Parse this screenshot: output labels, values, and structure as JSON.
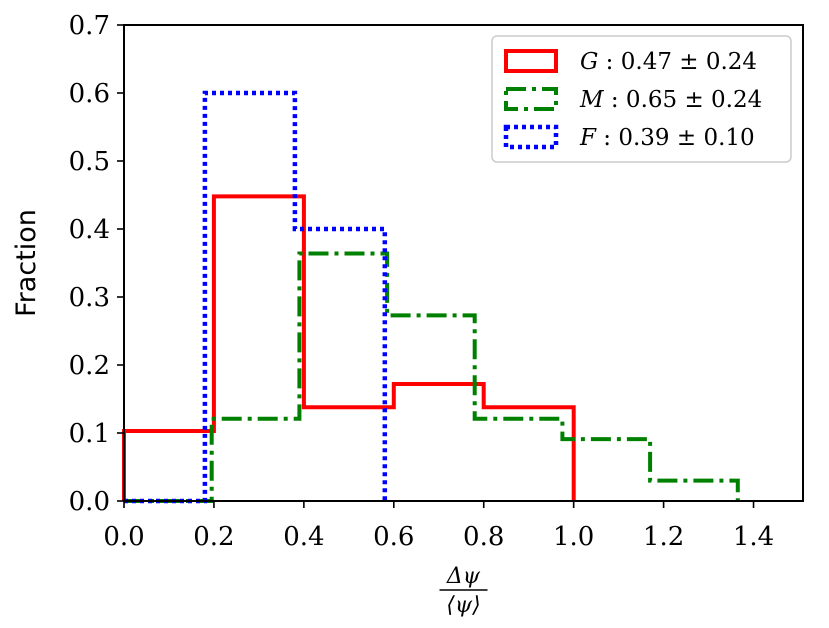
{
  "chart_data": {
    "type": "histogram-step",
    "xlabel_numerator": "Δψ",
    "xlabel_denominator": "⟨ψ⟩",
    "ylabel": "Fraction",
    "xlim": [
      0.0,
      1.51
    ],
    "ylim": [
      0.0,
      0.7
    ],
    "xticks": [
      0.0,
      0.2,
      0.4,
      0.6,
      0.8,
      1.0,
      1.2,
      1.4
    ],
    "xtick_labels": [
      "0.0",
      "0.2",
      "0.4",
      "0.6",
      "0.8",
      "1.0",
      "1.2",
      "1.4"
    ],
    "yticks": [
      0.0,
      0.1,
      0.2,
      0.3,
      0.4,
      0.5,
      0.6,
      0.7
    ],
    "ytick_labels": [
      "0.0",
      "0.1",
      "0.2",
      "0.3",
      "0.4",
      "0.5",
      "0.6",
      "0.7"
    ],
    "legend_position": "upper right",
    "series": [
      {
        "name": "G : 0.47 ± 0.24",
        "name_parts": {
          "symbol": "G",
          "value": ": 0.47 ± 0.24"
        },
        "color": "#ff0000",
        "linestyle": "solid",
        "bin_edges": [
          0.0,
          0.2,
          0.4,
          0.6,
          0.8,
          1.0
        ],
        "values": [
          0.103,
          0.448,
          0.138,
          0.172,
          0.138
        ]
      },
      {
        "name": "M : 0.65 ± 0.24",
        "name_parts": {
          "symbol": "M",
          "value": ": 0.65 ± 0.24"
        },
        "color": "#008000",
        "linestyle": "dashdot",
        "bin_edges": [
          0.0,
          0.195,
          0.39,
          0.585,
          0.78,
          0.975,
          1.17,
          1.365
        ],
        "values": [
          0.0,
          0.121,
          0.364,
          0.273,
          0.121,
          0.091,
          0.03
        ]
      },
      {
        "name": "F : 0.39 ± 0.10",
        "name_parts": {
          "symbol": "F",
          "value": ": 0.39 ± 0.10"
        },
        "color": "#0000ff",
        "linestyle": "dotted",
        "bin_edges": [
          0.0,
          0.18,
          0.38,
          0.58
        ],
        "values": [
          0.0,
          0.6,
          0.4
        ]
      }
    ]
  }
}
